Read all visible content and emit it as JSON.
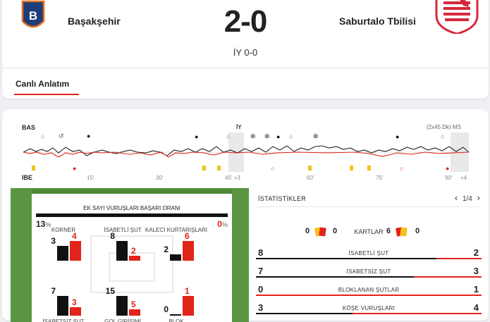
{
  "match": {
    "home_team": "Başakşehir",
    "away_team": "Saburtalo Tbilisi",
    "score": "2-0",
    "halftime": "İY 0-0",
    "home_logo": "basaksehir-crest-icon",
    "away_logo": "saburtalo-eagle-crest-icon"
  },
  "tabs": [
    {
      "label": "Canlı Anlatım",
      "active": true
    }
  ],
  "timeline": {
    "home_abbr": "BAS",
    "away_abbr": "IBE",
    "halftime_label": "İY",
    "duration_label": "(2x45 Dk) MS",
    "ticks": [
      "15'",
      "30'",
      "45' +3",
      "60'",
      "75'",
      "90'",
      "+4"
    ]
  },
  "pitch": {
    "corner_success": {
      "title": "EK SAYI VURUŞLARI BAŞARI ORANI",
      "home": "13",
      "away": "0",
      "unit": "%",
      "home_ratio": 1.0
    },
    "mini_stats": [
      {
        "label": "KORNER",
        "home": "3",
        "away": "4"
      },
      {
        "label": "İSABETLİ ŞUT",
        "home": "8",
        "away": "2"
      },
      {
        "label": "KALECİ KURTARIŞLARI",
        "home": "2",
        "away": "6"
      },
      {
        "label": "İSABETSİZ ŞUT",
        "home": "7",
        "away": "3"
      },
      {
        "label": "GOL GİRİŞİMİ",
        "home": "15",
        "away": "5"
      },
      {
        "label": "BLOK",
        "home": "0",
        "away": "1"
      }
    ]
  },
  "stats": {
    "title": "İSTATİSTİKLER",
    "pager": "1/4",
    "cards": {
      "label": "KARTLAR",
      "home_yellow": "0",
      "home_red": "0",
      "away_yellow": "6",
      "away_red": "0"
    },
    "rows": [
      {
        "name": "İSABETLİ ŞUT",
        "home": "8",
        "away": "2"
      },
      {
        "name": "İSABETSİZ ŞUT",
        "home": "7",
        "away": "3"
      },
      {
        "name": "BLOKLANAN ŞUTLAR",
        "home": "0",
        "away": "1"
      },
      {
        "name": "KÖŞE VURUŞLARI",
        "home": "3",
        "away": "4"
      }
    ]
  },
  "colors": {
    "accent": "#e2231a",
    "home": "#111111",
    "pitch": "#4f8a3a",
    "yellow_card": "#f2c31b",
    "red_card": "#e2231a"
  }
}
